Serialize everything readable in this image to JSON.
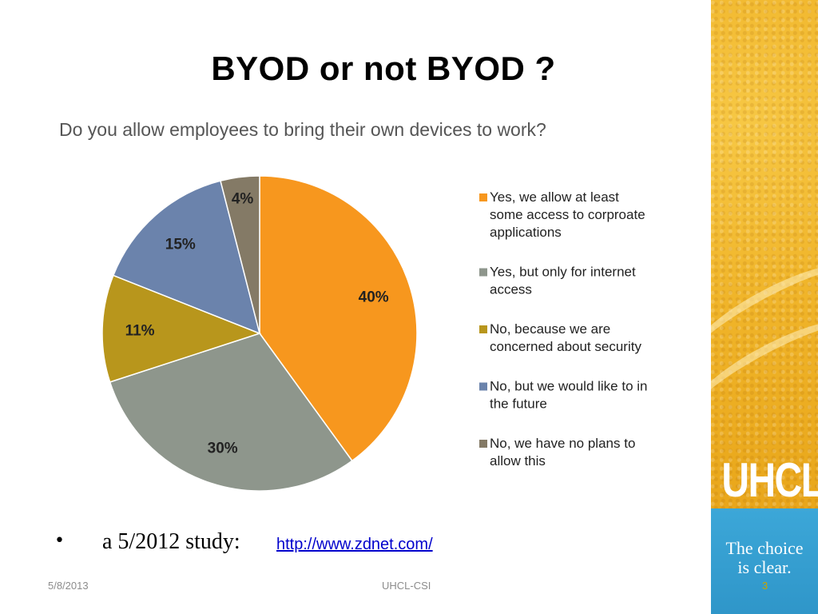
{
  "slide": {
    "title": "BYOD or not BYOD ?",
    "bullet": {
      "symbol": "•",
      "text": "a 5/2012 study:",
      "link_text": "http://www.zdnet.com/"
    },
    "footer": {
      "date": "5/8/2013",
      "center": "UHCL-CSI",
      "page": "3"
    },
    "branding": {
      "logo": "UHCL",
      "tagline_line1": "The choice",
      "tagline_line2": "is clear."
    }
  },
  "chart_data": {
    "type": "pie",
    "title": "Do you allow employees to bring their own devices to work?",
    "legend_position": "right",
    "categories": [
      "Yes, we allow at least some access to corproate applications",
      "Yes, but only for internet access",
      "No, because we are concerned about security",
      "No, but we would like to in the future",
      "No, we have no plans to allow this"
    ],
    "legend_lines": [
      [
        "Yes, we allow at least",
        "some access to corproate",
        "applications"
      ],
      [
        "Yes, but only for internet",
        "access"
      ],
      [
        "No, because we are",
        "concerned about security"
      ],
      [
        "No, but we would like to in",
        "the future"
      ],
      [
        "No, we have no plans to",
        "allow this"
      ]
    ],
    "values": [
      40,
      30,
      11,
      15,
      4
    ],
    "labels": [
      "40%",
      "30%",
      "11%",
      "15%",
      "4%"
    ],
    "colors": [
      "#f7971e",
      "#8e968c",
      "#b8961c",
      "#6b83ac",
      "#847a66"
    ]
  }
}
